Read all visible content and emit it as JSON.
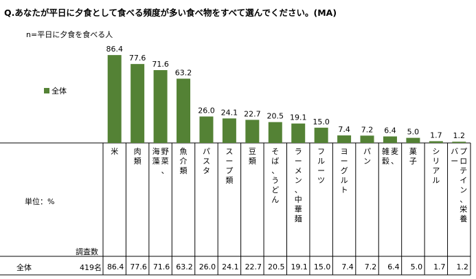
{
  "question": "Q.あなたが平日に夕食として食べる頻度が多い食べ物をすべて選んでください。(MA)",
  "base_note": "n=平日に夕食を食べる人",
  "unit_label": "単位：%",
  "count_header": "調査数",
  "row": {
    "label": "全体",
    "count": "419名"
  },
  "colors": {
    "bar": "#548235"
  },
  "chart_data": {
    "type": "bar",
    "categories": [
      "米",
      "肉類",
      "野菜、海藻",
      "魚介類",
      "パスタ",
      "スープ類",
      "豆類",
      "そば、うどん",
      "ラーメン、中華麺",
      "フルーツ",
      "ヨーグルト",
      "パン",
      "麦、雑穀",
      "菓子",
      "シリアル",
      "プロテイン、栄養バー"
    ],
    "category_lines": [
      [
        "米"
      ],
      [
        "肉類"
      ],
      [
        "野菜、",
        "海藻"
      ],
      [
        "魚介類"
      ],
      [
        "パスタ"
      ],
      [
        "スープ類"
      ],
      [
        "豆類"
      ],
      [
        "そば、うどん"
      ],
      [
        "ラーメン、中華麺"
      ],
      [
        "フルーツ"
      ],
      [
        "ヨーグルト"
      ],
      [
        "パン"
      ],
      [
        "麦、",
        "雑穀"
      ],
      [
        "菓子"
      ],
      [
        "シリアル"
      ],
      [
        "プロテイン、栄養",
        "バー"
      ]
    ],
    "series": [
      {
        "name": "全体",
        "values": [
          86.4,
          77.6,
          71.6,
          63.2,
          26.0,
          24.1,
          22.7,
          20.5,
          19.1,
          15.0,
          7.4,
          7.2,
          6.4,
          5.0,
          1.7,
          1.2
        ]
      }
    ],
    "value_labels": [
      "86.4",
      "77.6",
      "71.6",
      "63.2",
      "26.0",
      "24.1",
      "22.7",
      "20.5",
      "19.1",
      "15.0",
      "7.4",
      "7.2",
      "6.4",
      "5.0",
      "1.7",
      "1.2"
    ],
    "ylim": [
      0,
      100
    ]
  }
}
